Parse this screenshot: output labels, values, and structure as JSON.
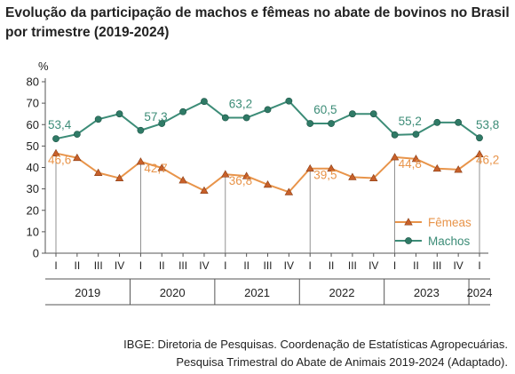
{
  "chart_data": {
    "type": "line",
    "title": "Evolução da participação de machos e fêmeas no abate de bovinos no Brasil por trimestre (2019-2024)",
    "ylabel": "%",
    "xlabel": "",
    "ylim": [
      0,
      80
    ],
    "yticks": [
      "0",
      "10",
      "20",
      "30",
      "40",
      "50",
      "60",
      "70",
      "80"
    ],
    "grid": false,
    "legend_position": "bottom-right",
    "quarter_labels": [
      "I",
      "II",
      "III",
      "IV",
      "I",
      "II",
      "III",
      "IV",
      "I",
      "II",
      "III",
      "IV",
      "I",
      "II",
      "III",
      "IV",
      "I",
      "II",
      "III",
      "IV",
      "I"
    ],
    "years": [
      "2019",
      "2020",
      "2021",
      "2022",
      "2023",
      "2024"
    ],
    "series": [
      {
        "name": "Fêmeas",
        "color": "#e8944a",
        "marker": "triangle",
        "values": [
          46.6,
          44.5,
          37.5,
          35.0,
          42.7,
          39.8,
          34.0,
          29.2,
          36.8,
          36.0,
          32.0,
          28.5,
          39.5,
          39.5,
          35.5,
          35.0,
          44.8,
          44.0,
          39.5,
          39.0,
          46.2
        ],
        "labels": [
          "46,6",
          "",
          "",
          "",
          "42,7",
          "",
          "",
          "",
          "36,8",
          "",
          "",
          "",
          "39,5",
          "",
          "",
          "",
          "44,8",
          "",
          "",
          "",
          "46,2"
        ]
      },
      {
        "name": "Machos",
        "color": "#3c8c77",
        "marker": "circle",
        "values": [
          53.4,
          55.5,
          62.5,
          65.0,
          57.3,
          60.5,
          66.0,
          70.8,
          63.2,
          63.2,
          67.0,
          71.0,
          60.5,
          60.5,
          65.0,
          65.0,
          55.2,
          55.5,
          61.0,
          61.0,
          53.8
        ],
        "labels": [
          "53,4",
          "",
          "",
          "",
          "57,3",
          "",
          "",
          "",
          "63,2",
          "",
          "",
          "",
          "60,5",
          "",
          "",
          "",
          "55,2",
          "",
          "",
          "",
          "53,8"
        ]
      }
    ]
  },
  "source": {
    "line1": "IBGE: Diretoria de Pesquisas. Coordenação de Estatísticas Agropecuárias.",
    "line2": "Pesquisa Trimestral do Abate de Animais 2019-2024 (Adaptado)."
  }
}
